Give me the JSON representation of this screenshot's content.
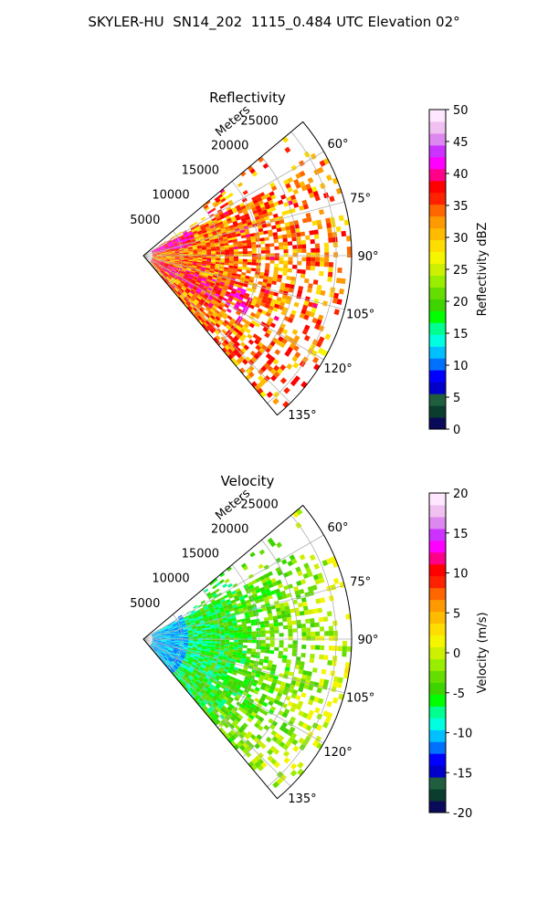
{
  "figure": {
    "title": "SKYLER-HU  SN14_202  1115_0.484 UTC Elevation 02°"
  },
  "chart_data": [
    {
      "type": "polar-sector",
      "title": "Reflectivity",
      "range_label": "Meters",
      "r_ticks": [
        5000,
        10000,
        15000,
        20000,
        25000
      ],
      "r_max": 27000,
      "theta_ticks": [
        "60°",
        "75°",
        "90°",
        "105°",
        "120°",
        "135°"
      ],
      "theta_tick_values": [
        60,
        75,
        90,
        105,
        120,
        135
      ],
      "theta_range": [
        50,
        140
      ],
      "grid": true,
      "colorbar": {
        "label": "Reflectivity dBZ",
        "ticks": [
          0,
          5,
          10,
          15,
          20,
          25,
          30,
          35,
          40,
          45,
          50
        ],
        "range": [
          0,
          50
        ]
      }
    },
    {
      "type": "polar-sector",
      "title": "Velocity",
      "range_label": "Meters",
      "r_ticks": [
        5000,
        10000,
        15000,
        20000,
        25000
      ],
      "r_max": 27000,
      "theta_ticks": [
        "60°",
        "75°",
        "90°",
        "105°",
        "120°",
        "135°"
      ],
      "theta_tick_values": [
        60,
        75,
        90,
        105,
        120,
        135
      ],
      "theta_range": [
        50,
        140
      ],
      "grid": true,
      "colorbar": {
        "label": "Velocity (m/s)",
        "ticks": [
          -20,
          -15,
          -10,
          -5,
          0,
          5,
          10,
          15,
          20
        ],
        "range": [
          -20,
          20
        ]
      }
    }
  ],
  "colors": {
    "colorscale": [
      "#0a0a5a",
      "#0b3d2e",
      "#1f5f3f",
      "#0000c8",
      "#0000ff",
      "#0070ff",
      "#00c0ff",
      "#00ffe0",
      "#00ff90",
      "#00ff00",
      "#3ed400",
      "#66dd00",
      "#99ee00",
      "#ccf000",
      "#f5f500",
      "#ffdd00",
      "#ffbb00",
      "#ff9900",
      "#ff6600",
      "#ff2200",
      "#ff0000",
      "#ff0088",
      "#ff00ff",
      "#cc33ff",
      "#dd88ee",
      "#f0c0f0",
      "#ffe8ff"
    ],
    "axis": "#000000",
    "grid": "#b0b0b0"
  }
}
